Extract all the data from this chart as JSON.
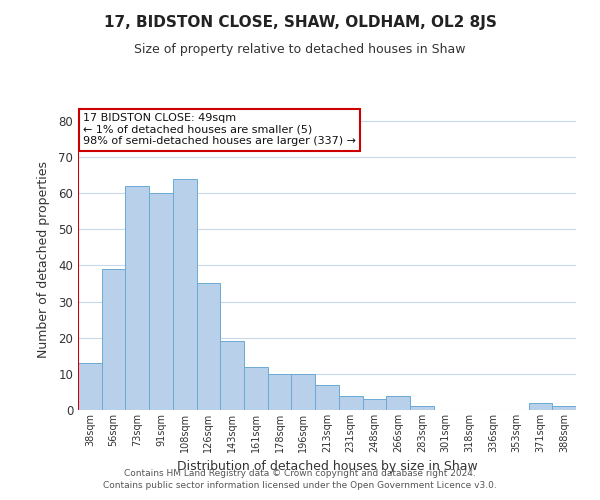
{
  "title": "17, BIDSTON CLOSE, SHAW, OLDHAM, OL2 8JS",
  "subtitle": "Size of property relative to detached houses in Shaw",
  "xlabel": "Distribution of detached houses by size in Shaw",
  "ylabel": "Number of detached properties",
  "bar_color": "#b8d0ea",
  "bar_edge_color": "#6aaad4",
  "background_color": "#ffffff",
  "grid_color": "#c8d8e8",
  "annotation_box_edge_color": "#cc0000",
  "annotation_text_line1": "17 BIDSTON CLOSE: 49sqm",
  "annotation_text_line2": "← 1% of detached houses are smaller (5)",
  "annotation_text_line3": "98% of semi-detached houses are larger (337) →",
  "footer_line1": "Contains HM Land Registry data © Crown copyright and database right 2024.",
  "footer_line2": "Contains public sector information licensed under the Open Government Licence v3.0.",
  "categories": [
    "38sqm",
    "56sqm",
    "73sqm",
    "91sqm",
    "108sqm",
    "126sqm",
    "143sqm",
    "161sqm",
    "178sqm",
    "196sqm",
    "213sqm",
    "231sqm",
    "248sqm",
    "266sqm",
    "283sqm",
    "301sqm",
    "318sqm",
    "336sqm",
    "353sqm",
    "371sqm",
    "388sqm"
  ],
  "values": [
    13,
    39,
    62,
    60,
    64,
    35,
    19,
    12,
    10,
    10,
    7,
    4,
    3,
    4,
    1,
    0,
    0,
    0,
    0,
    2,
    1
  ],
  "highlight_color": "#cc0000",
  "ylim": [
    0,
    83
  ],
  "yticks": [
    0,
    10,
    20,
    30,
    40,
    50,
    60,
    70,
    80
  ]
}
